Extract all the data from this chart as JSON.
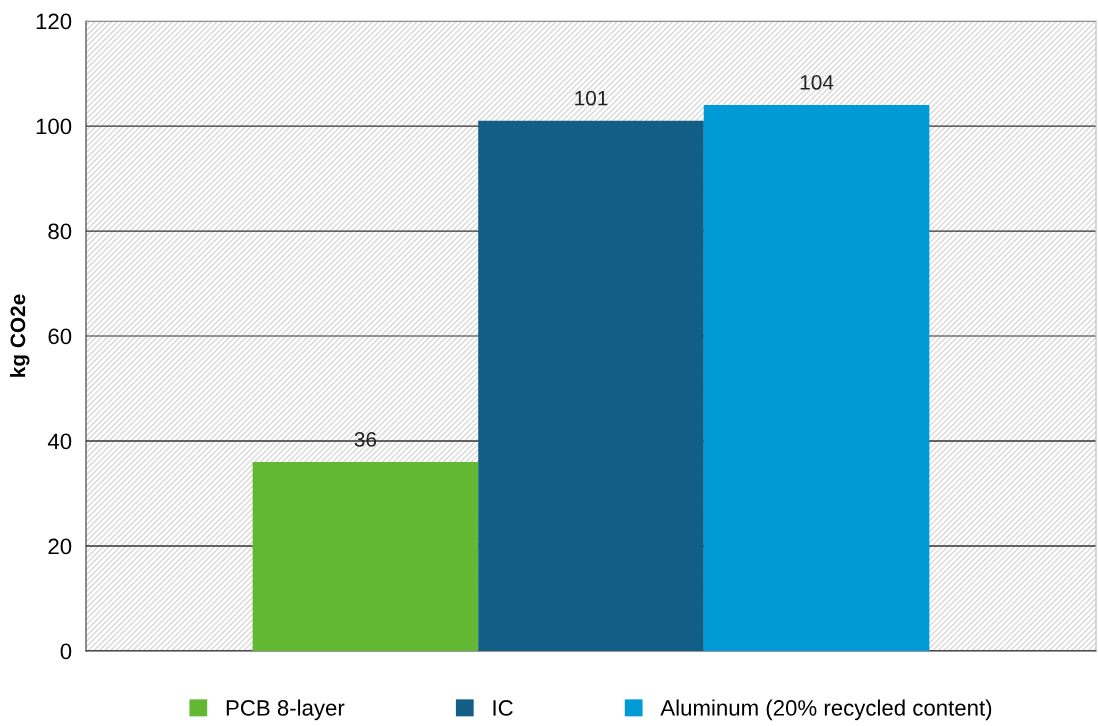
{
  "chart_data": {
    "type": "bar",
    "ylabel": "kg CO2e",
    "categories": [
      null
    ],
    "series": [
      {
        "name": "PCB 8-layer",
        "color": "#62b832",
        "values": [
          36
        ]
      },
      {
        "name": "IC",
        "color": "#135e86",
        "values": [
          101
        ]
      },
      {
        "name": "Aluminum (20% recycled content)",
        "color": "#009ad6",
        "values": [
          104
        ]
      }
    ],
    "ylim": [
      0,
      120
    ],
    "yticks": [
      0,
      20,
      40,
      60,
      80,
      100,
      120
    ],
    "grid": "y",
    "legend": "bottom",
    "data_labels": true
  }
}
